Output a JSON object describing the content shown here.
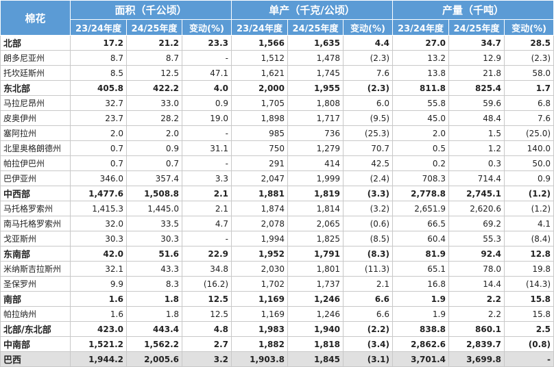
{
  "header": {
    "corner": "棉花",
    "groups": [
      "面积（千公顷）",
      "单产（千克/公顷）",
      "产量（千吨）"
    ],
    "subcols": [
      "23/24年度",
      "24/25年度",
      "变动(%)"
    ]
  },
  "rows": [
    {
      "type": "region",
      "name": "北部",
      "v": [
        "17.2",
        "21.2",
        "23.3",
        "1,566",
        "1,635",
        "4.4",
        "27.0",
        "34.7",
        "28.5"
      ]
    },
    {
      "type": "state",
      "name": "朗多尼亚州",
      "v": [
        "8.7",
        "8.7",
        "-",
        "1,512",
        "1,478",
        "(2.3)",
        "13.2",
        "12.9",
        "(2.3)"
      ]
    },
    {
      "type": "state",
      "name": "托坎廷斯州",
      "v": [
        "8.5",
        "12.5",
        "47.1",
        "1,621",
        "1,745",
        "7.6",
        "13.8",
        "21.8",
        "58.0"
      ]
    },
    {
      "type": "region",
      "name": "东北部",
      "v": [
        "405.8",
        "422.2",
        "4.0",
        "2,000",
        "1,955",
        "(2.3)",
        "811.8",
        "825.4",
        "1.7"
      ]
    },
    {
      "type": "state",
      "name": "马拉尼昂州",
      "v": [
        "32.7",
        "33.0",
        "0.9",
        "1,705",
        "1,808",
        "6.0",
        "55.8",
        "59.6",
        "6.8"
      ]
    },
    {
      "type": "state",
      "name": "皮奥伊州",
      "v": [
        "23.7",
        "28.2",
        "19.0",
        "1,898",
        "1,717",
        "(9.5)",
        "45.0",
        "48.4",
        "7.6"
      ]
    },
    {
      "type": "state",
      "name": "塞阿拉州",
      "v": [
        "2.0",
        "2.0",
        "-",
        "985",
        "736",
        "(25.3)",
        "2.0",
        "1.5",
        "(25.0)"
      ]
    },
    {
      "type": "state",
      "name": "北里奥格朗德州",
      "v": [
        "0.7",
        "0.9",
        "31.1",
        "750",
        "1,279",
        "70.7",
        "0.5",
        "1.2",
        "140.0"
      ]
    },
    {
      "type": "state",
      "name": "帕拉伊巴州",
      "v": [
        "0.7",
        "0.7",
        "-",
        "291",
        "414",
        "42.5",
        "0.2",
        "0.3",
        "50.0"
      ]
    },
    {
      "type": "state",
      "name": "巴伊亚州",
      "v": [
        "346.0",
        "357.4",
        "3.3",
        "2,047",
        "1,999",
        "(2.4)",
        "708.3",
        "714.4",
        "0.9"
      ]
    },
    {
      "type": "region",
      "name": "中西部",
      "v": [
        "1,477.6",
        "1,508.8",
        "2.1",
        "1,881",
        "1,819",
        "(3.3)",
        "2,778.8",
        "2,745.1",
        "(1.2)"
      ]
    },
    {
      "type": "state",
      "name": "马托格罗索州",
      "v": [
        "1,415.3",
        "1,445.0",
        "2.1",
        "1,874",
        "1,814",
        "(3.2)",
        "2,651.9",
        "2,620.6",
        "(1.2)"
      ]
    },
    {
      "type": "state",
      "name": "南马托格罗索州",
      "v": [
        "32.0",
        "33.5",
        "4.7",
        "2,078",
        "2,065",
        "(0.6)",
        "66.5",
        "69.2",
        "4.1"
      ]
    },
    {
      "type": "state",
      "name": "戈亚斯州",
      "v": [
        "30.3",
        "30.3",
        "-",
        "1,994",
        "1,825",
        "(8.5)",
        "60.4",
        "55.3",
        "(8.4)"
      ]
    },
    {
      "type": "region",
      "name": "东南部",
      "v": [
        "42.0",
        "51.6",
        "22.9",
        "1,952",
        "1,791",
        "(8.3)",
        "81.9",
        "92.4",
        "12.8"
      ]
    },
    {
      "type": "state",
      "name": "米纳斯吉拉斯州",
      "v": [
        "32.1",
        "43.3",
        "34.8",
        "2,030",
        "1,801",
        "(11.3)",
        "65.1",
        "78.0",
        "19.8"
      ]
    },
    {
      "type": "state",
      "name": "圣保罗州",
      "v": [
        "9.9",
        "8.3",
        "(16.2)",
        "1,702",
        "1,737",
        "2.1",
        "16.8",
        "14.4",
        "(14.3)"
      ]
    },
    {
      "type": "region",
      "name": "南部",
      "v": [
        "1.6",
        "1.8",
        "12.5",
        "1,169",
        "1,246",
        "6.6",
        "1.9",
        "2.2",
        "15.8"
      ]
    },
    {
      "type": "state",
      "name": "帕拉纳州",
      "v": [
        "1.6",
        "1.8",
        "12.5",
        "1,169",
        "1,246",
        "6.6",
        "1.9",
        "2.2",
        "15.8"
      ]
    },
    {
      "type": "region",
      "name": "北部/东北部",
      "v": [
        "423.0",
        "443.4",
        "4.8",
        "1,983",
        "1,940",
        "(2.2)",
        "838.8",
        "860.1",
        "2.5"
      ]
    },
    {
      "type": "region",
      "name": "中南部",
      "v": [
        "1,521.2",
        "1,562.2",
        "2.7",
        "1,882",
        "1,818",
        "(3.4)",
        "2,862.6",
        "2,839.7",
        "(0.8)"
      ]
    },
    {
      "type": "total",
      "name": "巴西",
      "v": [
        "1,944.2",
        "2,005.6",
        "3.2",
        "1,903.8",
        "1,845",
        "(3.1)",
        "3,701.4",
        "3,699.8",
        "-"
      ]
    }
  ]
}
